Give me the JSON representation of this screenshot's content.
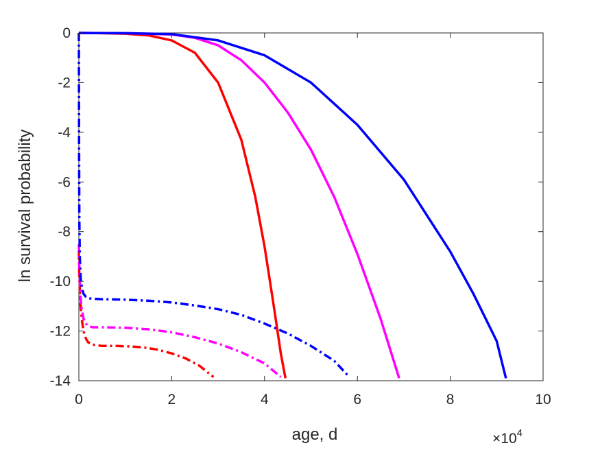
{
  "chart_data": {
    "type": "line",
    "title": "",
    "xlabel": "age, d",
    "ylabel": "ln survival probability",
    "xlim": [
      0,
      100000
    ],
    "ylim": [
      -14,
      0
    ],
    "x_exponent_label": {
      "base": "×10",
      "exponent": "4"
    },
    "xticks": [
      0,
      20000,
      40000,
      60000,
      80000,
      100000
    ],
    "xtick_labels": [
      "0",
      "2",
      "4",
      "6",
      "8",
      "10"
    ],
    "yticks": [
      0,
      -2,
      -4,
      -6,
      -8,
      -10,
      -12,
      -14
    ],
    "ytick_labels": [
      "0",
      "-2",
      "-4",
      "-6",
      "-8",
      "-10",
      "-12",
      "-14"
    ],
    "grid": false,
    "legend": false,
    "series": [
      {
        "color": "#ff0000",
        "style": "solid",
        "x": [
          0,
          5000,
          10000,
          15000,
          20000,
          25000,
          30000,
          35000,
          38000,
          40000,
          42000,
          43500,
          44500
        ],
        "y": [
          0,
          -0.01,
          -0.03,
          -0.1,
          -0.3,
          -0.8,
          -2.0,
          -4.3,
          -6.6,
          -8.6,
          -11.0,
          -12.9,
          -13.9
        ]
      },
      {
        "color": "#ff00ff",
        "style": "solid",
        "x": [
          0,
          10000,
          20000,
          25000,
          30000,
          35000,
          40000,
          45000,
          50000,
          55000,
          60000,
          65000,
          69000
        ],
        "y": [
          0,
          -0.01,
          -0.06,
          -0.2,
          -0.5,
          -1.1,
          -2.0,
          -3.2,
          -4.7,
          -6.6,
          -8.9,
          -11.5,
          -13.9
        ]
      },
      {
        "color": "#0000ff",
        "style": "solid",
        "x": [
          0,
          10000,
          20000,
          30000,
          40000,
          50000,
          60000,
          70000,
          80000,
          85000,
          90000,
          92000
        ],
        "y": [
          0,
          -0.01,
          -0.05,
          -0.3,
          -0.9,
          -2.0,
          -3.7,
          -5.9,
          -8.8,
          -10.5,
          -12.4,
          -13.9
        ]
      },
      {
        "color": "#ff0000",
        "style": "dashdot",
        "x": [
          0,
          100,
          300,
          600,
          1000,
          1500,
          2000,
          3000,
          5000,
          8000,
          11000,
          14000,
          17000,
          20000,
          23000,
          26000,
          29000
        ],
        "y": [
          -8.8,
          -9.8,
          -10.8,
          -11.5,
          -12.0,
          -12.3,
          -12.45,
          -12.55,
          -12.6,
          -12.6,
          -12.62,
          -12.66,
          -12.75,
          -12.9,
          -13.1,
          -13.4,
          -13.85
        ]
      },
      {
        "color": "#ff00ff",
        "style": "dashdot",
        "x": [
          0,
          100,
          300,
          600,
          1000,
          1500,
          2000,
          3000,
          5000,
          10000,
          15000,
          20000,
          25000,
          30000,
          35000,
          40000,
          43500
        ],
        "y": [
          -8.5,
          -9.5,
          -10.5,
          -11.1,
          -11.5,
          -11.7,
          -11.8,
          -11.85,
          -11.85,
          -11.87,
          -11.93,
          -12.05,
          -12.25,
          -12.5,
          -12.85,
          -13.3,
          -13.85
        ]
      },
      {
        "color": "#0000ff",
        "style": "dashdot",
        "x": [
          0,
          50,
          100,
          200,
          400,
          700,
          1000,
          1500,
          2000,
          3000,
          5000,
          10000,
          15000,
          20000,
          25000,
          30000,
          35000,
          40000,
          45000,
          50000,
          55000,
          58000
        ],
        "y": [
          0,
          -4.5,
          -7.5,
          -9.0,
          -9.9,
          -10.3,
          -10.5,
          -10.62,
          -10.68,
          -10.7,
          -10.72,
          -10.74,
          -10.78,
          -10.85,
          -10.97,
          -11.12,
          -11.35,
          -11.7,
          -12.1,
          -12.6,
          -13.2,
          -13.8
        ]
      }
    ]
  }
}
